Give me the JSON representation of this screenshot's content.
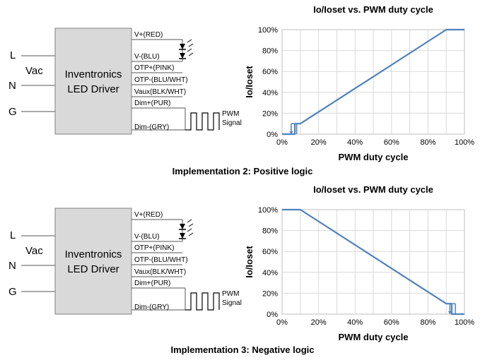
{
  "panels": [
    {
      "inputs": {
        "L": "L",
        "N": "N",
        "G": "G",
        "vac": "Vac"
      },
      "driver": {
        "line1": "Inventronics",
        "line2": "LED Driver"
      },
      "pins": [
        {
          "label": "V+(RED)"
        },
        {
          "label": "V-(BLU)"
        },
        {
          "label": "OTP+(PINK)"
        },
        {
          "label": "OTP-(BLU/WHT)"
        },
        {
          "label": "Vaux(BLK/WHT)"
        },
        {
          "label": "Dim+(PUR)"
        },
        {
          "label": "Dim-(GRY)"
        }
      ],
      "pwm_label": {
        "line1": "PWM",
        "line2": "Signal"
      },
      "caption": "Implementation 2: Positive logic",
      "chart_data": {
        "type": "line",
        "title": "Io/Ioset vs. PWM duty cycle",
        "xlabel": "PWM duty cycle",
        "ylabel": "Io/Ioset",
        "xlim": [
          0,
          100
        ],
        "ylim": [
          0,
          100
        ],
        "x_ticks": [
          "0%",
          "20%",
          "40%",
          "60%",
          "80%",
          "100%"
        ],
        "y_ticks": [
          "0%",
          "20%",
          "40%",
          "60%",
          "80%",
          "100%"
        ],
        "grid": true,
        "series_color": "#4f81bd",
        "series": [
          {
            "x": [
              0,
              7,
              7,
              10,
              90,
              100
            ],
            "y": [
              0,
              0,
              10,
              10,
              100,
              100
            ]
          }
        ],
        "hysteresis": {
          "x": [
            5,
            8
          ],
          "y": [
            0,
            10
          ]
        }
      }
    },
    {
      "inputs": {
        "L": "L",
        "N": "N",
        "G": "G",
        "vac": "Vac"
      },
      "driver": {
        "line1": "Inventronics",
        "line2": "LED Driver"
      },
      "pins": [
        {
          "label": "V+(RED)"
        },
        {
          "label": "V-(BLU)"
        },
        {
          "label": "OTP+(PINK)"
        },
        {
          "label": "OTP-(BLU/WHT)"
        },
        {
          "label": "Vaux(BLK/WHT)"
        },
        {
          "label": "Dim+(PUR)"
        },
        {
          "label": "Dim-(GRY)"
        }
      ],
      "pwm_label": {
        "line1": "PWM",
        "line2": "Signal"
      },
      "caption": "Implementation 3: Negative logic",
      "chart_data": {
        "type": "line",
        "title": "Io/Ioset vs. PWM duty cycle",
        "xlabel": "PWM duty cycle",
        "ylabel": "Io/Ioset",
        "xlim": [
          0,
          100
        ],
        "ylim": [
          0,
          100
        ],
        "x_ticks": [
          "0%",
          "20%",
          "40%",
          "60%",
          "80%",
          "100%"
        ],
        "y_ticks": [
          "0%",
          "20%",
          "40%",
          "60%",
          "80%",
          "100%"
        ],
        "grid": true,
        "series_color": "#4f81bd",
        "series": [
          {
            "x": [
              0,
              10,
              90,
              93,
              93,
              100
            ],
            "y": [
              100,
              100,
              10,
              10,
              0,
              0
            ]
          }
        ],
        "hysteresis": {
          "x": [
            92,
            95
          ],
          "y": [
            0,
            10
          ]
        }
      }
    }
  ]
}
